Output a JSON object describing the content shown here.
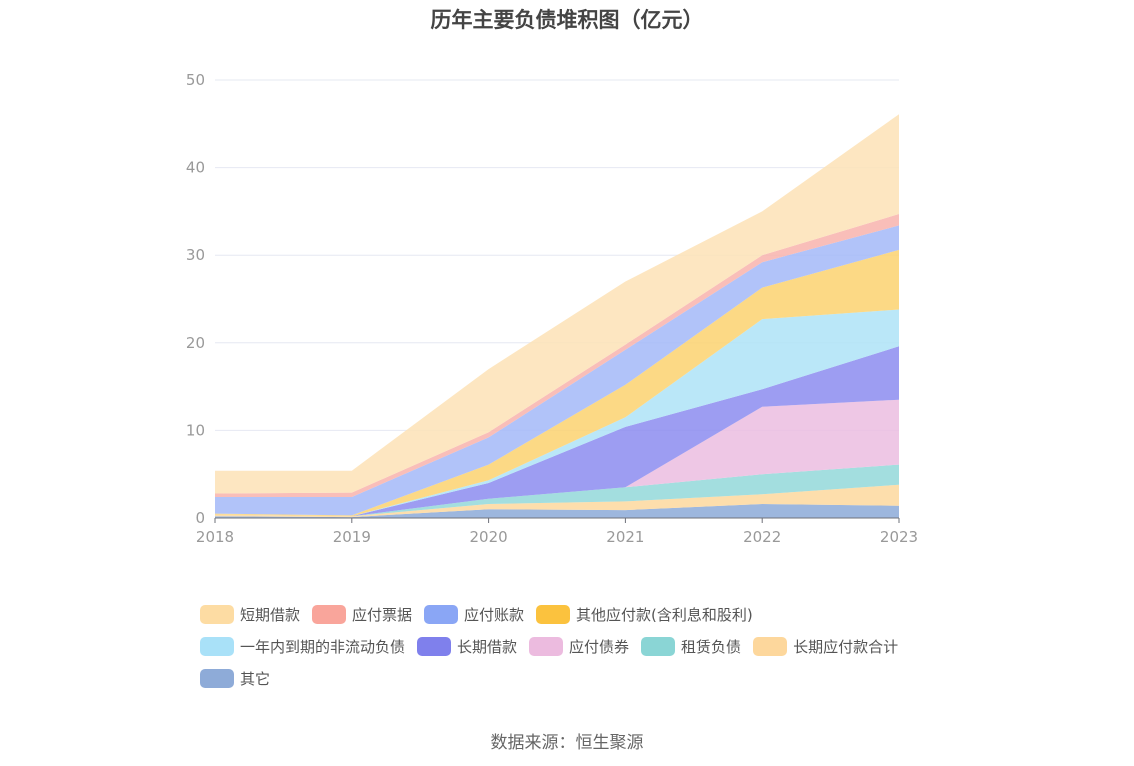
{
  "chart_data": {
    "type": "area",
    "stacked": true,
    "title": "历年主要负债堆积图（亿元）",
    "categories": [
      "2018",
      "2019",
      "2020",
      "2021",
      "2022",
      "2023"
    ],
    "ylim": [
      0,
      50
    ],
    "yticks": [
      0,
      10,
      20,
      30,
      40,
      50
    ],
    "grid": true,
    "legend_position": "bottom",
    "series": [
      {
        "name": "其它",
        "color": "#8caad8",
        "values": [
          0.2,
          0.1,
          1.0,
          0.9,
          1.6,
          1.4
        ]
      },
      {
        "name": "长期应付款合计",
        "color": "#fdd89e",
        "values": [
          0.2,
          0.1,
          0.6,
          1.0,
          1.1,
          2.4
        ]
      },
      {
        "name": "租赁负债",
        "color": "#93d8d9",
        "values": [
          0,
          0,
          0.6,
          1.6,
          2.3,
          2.3
        ]
      },
      {
        "name": "应付债券",
        "color": "#ebbde0",
        "values": [
          0,
          0,
          0,
          0,
          7.7,
          7.4
        ]
      },
      {
        "name": "长期借款",
        "color": "#8c8cf0",
        "values": [
          0,
          0,
          1.8,
          6.9,
          2.0,
          6.1
        ]
      },
      {
        "name": "一年内到期的非流动负债",
        "color": "#aee3f7",
        "values": [
          0,
          0,
          0.3,
          1.1,
          8.0,
          4.2
        ]
      },
      {
        "name": "其他应付款(含利息和股利)",
        "color": "#fcd270",
        "values": [
          0.1,
          0.1,
          1.8,
          3.7,
          3.6,
          6.8
        ]
      },
      {
        "name": "应付账款",
        "color": "#a3b8f8",
        "values": [
          1.9,
          2.1,
          3.1,
          4.0,
          2.9,
          2.8
        ]
      },
      {
        "name": "应付票据",
        "color": "#f8b3ad",
        "values": [
          0.4,
          0.5,
          0.6,
          0.6,
          0.8,
          1.3
        ]
      },
      {
        "name": "短期借款",
        "color": "#fde2b6",
        "values": [
          2.6,
          2.5,
          7.2,
          7.2,
          5.0,
          11.4
        ]
      }
    ]
  },
  "legend": {
    "rows": [
      [
        {
          "label": "短期借款",
          "color": "#fddca3"
        },
        {
          "label": "应付票据",
          "color": "#f9a59b"
        },
        {
          "label": "应付账款",
          "color": "#8aa6f5"
        },
        {
          "label": "其他应付款(含利息和股利)",
          "color": "#fbc23e"
        }
      ],
      [
        {
          "label": "一年内到期的非流动负债",
          "color": "#a9e1f8"
        },
        {
          "label": "长期借款",
          "color": "#7f80ec"
        },
        {
          "label": "应付债券",
          "color": "#ecbbdf"
        },
        {
          "label": "租赁负债",
          "color": "#8ad5d5"
        },
        {
          "label": "长期应付款合计",
          "color": "#fdd79c"
        }
      ],
      [
        {
          "label": "其它",
          "color": "#8eabd8"
        }
      ]
    ]
  },
  "source": "数据来源：恒生聚源"
}
